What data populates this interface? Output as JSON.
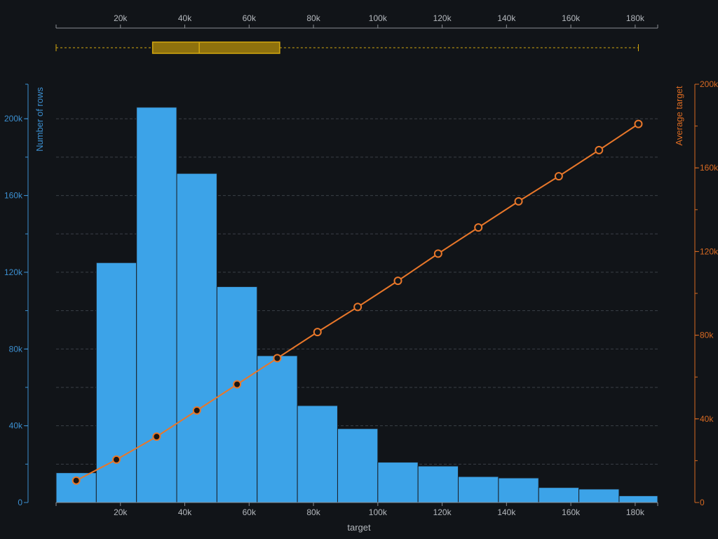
{
  "chart_data": {
    "type": "bar",
    "xlabel": "target",
    "ylabel": "Number of rows",
    "y2label": "Average target",
    "xlim": [
      0,
      187000
    ],
    "ylim": [
      0,
      218000
    ],
    "y2lim": [
      0,
      200000
    ],
    "x_ticks": [
      20000,
      40000,
      60000,
      80000,
      100000,
      120000,
      140000,
      160000,
      180000
    ],
    "x_tick_labels": [
      "20k",
      "40k",
      "60k",
      "80k",
      "100k",
      "120k",
      "140k",
      "160k",
      "180k"
    ],
    "y_ticks": [
      0,
      40000,
      80000,
      120000,
      160000,
      200000
    ],
    "y_tick_labels": [
      "0",
      "40k",
      "80k",
      "120k",
      "160k",
      "200k"
    ],
    "y2_ticks": [
      0,
      40000,
      80000,
      120000,
      160000,
      200000
    ],
    "y2_tick_labels": [
      "0",
      "40k",
      "80k",
      "120k",
      "160k",
      "200k"
    ],
    "grid": true,
    "bins": [
      {
        "x0": 0,
        "x1": 12500,
        "count": 15500
      },
      {
        "x0": 12500,
        "x1": 25000,
        "count": 125000
      },
      {
        "x0": 25000,
        "x1": 37500,
        "count": 206000
      },
      {
        "x0": 37500,
        "x1": 50000,
        "count": 171500
      },
      {
        "x0": 50000,
        "x1": 62500,
        "count": 112500
      },
      {
        "x0": 62500,
        "x1": 75000,
        "count": 76500
      },
      {
        "x0": 75000,
        "x1": 87500,
        "count": 50500
      },
      {
        "x0": 87500,
        "x1": 100000,
        "count": 38500
      },
      {
        "x0": 100000,
        "x1": 112500,
        "count": 21000
      },
      {
        "x0": 112500,
        "x1": 125000,
        "count": 19000
      },
      {
        "x0": 125000,
        "x1": 137500,
        "count": 13500
      },
      {
        "x0": 137500,
        "x1": 150000,
        "count": 12800
      },
      {
        "x0": 150000,
        "x1": 162500,
        "count": 7800
      },
      {
        "x0": 162500,
        "x1": 175000,
        "count": 7000
      },
      {
        "x0": 175000,
        "x1": 187000,
        "count": 3500
      }
    ],
    "average_line": {
      "x": [
        6250,
        18750,
        31250,
        43750,
        56250,
        68750,
        81250,
        93750,
        106250,
        118750,
        131250,
        143750,
        156250,
        168750,
        181000
      ],
      "y": [
        10500,
        20500,
        31500,
        44000,
        56500,
        69000,
        81500,
        93500,
        106000,
        119000,
        131500,
        144000,
        156000,
        168500,
        181000
      ]
    },
    "boxplot": {
      "min": 0,
      "q1": 30000,
      "median": 44500,
      "q3": 69500,
      "max": 181000
    },
    "colors": {
      "bars": "#3ca3e8",
      "bar_edge": "#1a1f26",
      "line": "#e8772a",
      "left_axis": "#3c8fd0",
      "right_axis": "#d86a22",
      "box": "#b8900a",
      "box_stroke": "#d4a80e",
      "grid": "#3a3f46",
      "text": "#b4b8bd",
      "axis": "#8a8e93"
    }
  }
}
